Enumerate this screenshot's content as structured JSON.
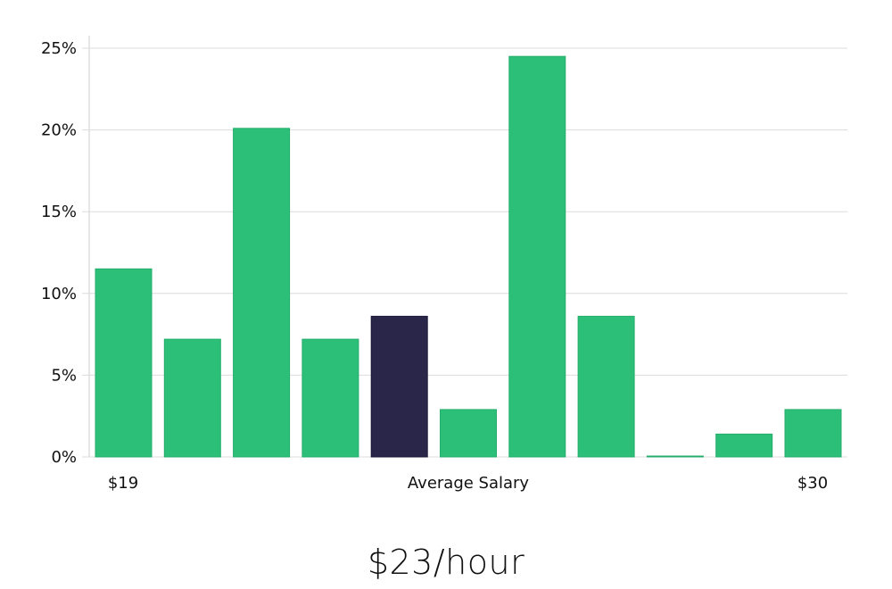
{
  "chart_data": {
    "type": "bar",
    "values": [
      11.5,
      7.2,
      20.1,
      7.2,
      8.6,
      2.9,
      24.5,
      8.6,
      0.05,
      1.4,
      2.9
    ],
    "highlight_index": 4,
    "ylim": [
      0,
      25
    ],
    "yticks": [
      "0%",
      "5%",
      "10%",
      "15%",
      "20%",
      "25%"
    ],
    "ytick_values": [
      0,
      5,
      10,
      15,
      20,
      25
    ],
    "x_labels": {
      "left": "$19",
      "center": "Average Salary",
      "right": "$30"
    },
    "grid": true,
    "colors": {
      "bar": "#2bbf78",
      "highlight": "#29264a",
      "grid": "#dcdcdc",
      "axis": "#cccccc"
    }
  },
  "summary": {
    "value": "$23/hour"
  }
}
